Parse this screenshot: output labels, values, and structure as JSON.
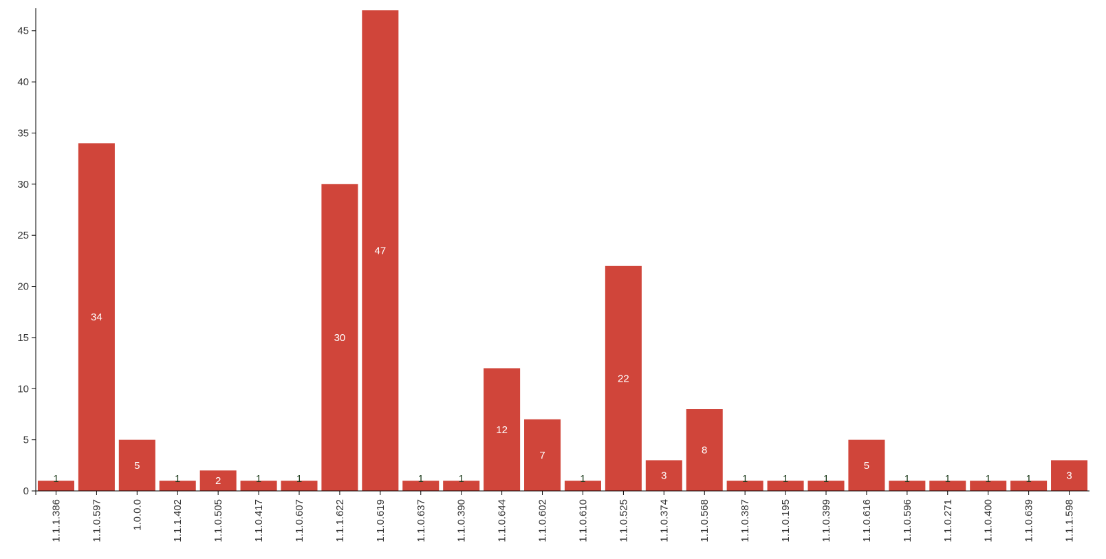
{
  "chart_data": {
    "type": "bar",
    "title": "",
    "xlabel": "",
    "ylabel": "",
    "ylim": [
      0,
      47
    ],
    "yticks": [
      0,
      5,
      10,
      15,
      20,
      25,
      30,
      35,
      40,
      45
    ],
    "grid": false,
    "bar_color": "#d0453a",
    "label_inside_color": "#ffffff",
    "label_small_color": "#1a3a1a",
    "categories": [
      "1.1.1.386",
      "1.1.0.597",
      "1.0.0.0",
      "1.1.1.402",
      "1.1.0.505",
      "1.1.0.417",
      "1.1.0.607",
      "1.1.1.622",
      "1.1.0.619",
      "1.1.0.637",
      "1.1.0.390",
      "1.1.0.644",
      "1.1.0.602",
      "1.1.0.610",
      "1.1.0.525",
      "1.1.0.374",
      "1.1.0.568",
      "1.1.0.387",
      "1.1.0.195",
      "1.1.0.399",
      "1.1.0.616",
      "1.1.0.596",
      "1.1.0.271",
      "1.1.0.400",
      "1.1.0.639",
      "1.1.1.598"
    ],
    "values": [
      1,
      34,
      5,
      1,
      2,
      1,
      1,
      30,
      47,
      1,
      1,
      12,
      7,
      1,
      22,
      3,
      8,
      1,
      1,
      1,
      5,
      1,
      1,
      1,
      1,
      3
    ]
  }
}
